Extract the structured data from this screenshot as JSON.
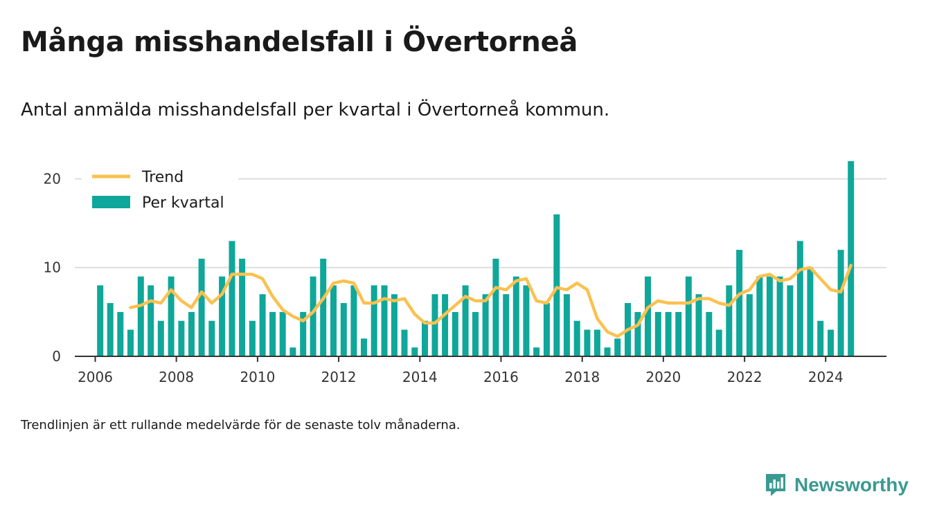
{
  "header": {
    "title": "Många misshandelsfall i Övertorneå",
    "subtitle": "Antal anmälda misshandelsfall per kvartal i Övertorneå kommun."
  },
  "footer": {
    "note": "Trendlinjen är ett rullande medelvärde för de senaste tolv månaderna.",
    "brand": "Newsworthy",
    "brand_icon": "newsworthy-logo-icon"
  },
  "colors": {
    "bars": "#0fa79a",
    "trend": "#fbc14f",
    "grid": "#dddddd",
    "axis": "#333333",
    "brand": "#3a9a92"
  },
  "chart_data": {
    "type": "bar",
    "xlim": [
      "2005-07-01",
      "2025-07-01"
    ],
    "ylim": [
      0,
      23
    ],
    "yticks": [
      0,
      10,
      20
    ],
    "xtick_labels": [
      "2006",
      "2008",
      "2010",
      "2012",
      "2014",
      "2016",
      "2018",
      "2020",
      "2022",
      "2024"
    ],
    "grid": true,
    "legend_position": "top-left",
    "legend": [
      "Trend",
      "Per kvartal"
    ],
    "categories": [
      "2006-Q1",
      "2006-Q2",
      "2006-Q3",
      "2006-Q4",
      "2007-Q1",
      "2007-Q2",
      "2007-Q3",
      "2007-Q4",
      "2008-Q1",
      "2008-Q2",
      "2008-Q3",
      "2008-Q4",
      "2009-Q1",
      "2009-Q2",
      "2009-Q3",
      "2009-Q4",
      "2010-Q1",
      "2010-Q2",
      "2010-Q3",
      "2010-Q4",
      "2011-Q1",
      "2011-Q2",
      "2011-Q3",
      "2011-Q4",
      "2012-Q1",
      "2012-Q2",
      "2012-Q3",
      "2012-Q4",
      "2013-Q1",
      "2013-Q2",
      "2013-Q3",
      "2013-Q4",
      "2014-Q1",
      "2014-Q2",
      "2014-Q3",
      "2014-Q4",
      "2015-Q1",
      "2015-Q2",
      "2015-Q3",
      "2015-Q4",
      "2016-Q1",
      "2016-Q2",
      "2016-Q3",
      "2016-Q4",
      "2017-Q1",
      "2017-Q2",
      "2017-Q3",
      "2017-Q4",
      "2018-Q1",
      "2018-Q2",
      "2018-Q3",
      "2018-Q4",
      "2019-Q1",
      "2019-Q2",
      "2019-Q3",
      "2019-Q4",
      "2020-Q1",
      "2020-Q2",
      "2020-Q3",
      "2020-Q4",
      "2021-Q1",
      "2021-Q2",
      "2021-Q3",
      "2021-Q4",
      "2022-Q1",
      "2022-Q2",
      "2022-Q3",
      "2022-Q4",
      "2023-Q1",
      "2023-Q2",
      "2023-Q3",
      "2023-Q4",
      "2024-Q1",
      "2024-Q2",
      "2024-Q3"
    ],
    "series": [
      {
        "name": "Per kvartal",
        "type": "bar",
        "values": [
          8,
          6,
          5,
          3,
          9,
          8,
          4,
          9,
          4,
          5,
          11,
          4,
          9,
          13,
          11,
          4,
          7,
          5,
          5,
          1,
          5,
          9,
          11,
          8,
          6,
          8,
          2,
          8,
          8,
          7,
          3,
          1,
          4,
          7,
          7,
          5,
          8,
          5,
          7,
          11,
          7,
          9,
          8,
          1,
          6,
          16,
          7,
          4,
          3,
          3,
          1,
          2,
          6,
          5,
          9,
          5,
          5,
          5,
          9,
          7,
          5,
          3,
          8,
          12,
          7,
          9,
          9,
          9,
          8,
          13,
          10,
          4,
          3,
          12,
          22
        ]
      },
      {
        "name": "Trend",
        "type": "line",
        "values": [
          null,
          null,
          null,
          5.5,
          5.75,
          6.25,
          6.0,
          7.5,
          6.25,
          5.5,
          7.25,
          6.0,
          7.0,
          9.25,
          9.25,
          9.25,
          8.75,
          6.75,
          5.25,
          4.5,
          4.0,
          5.0,
          6.5,
          8.25,
          8.5,
          8.25,
          6.0,
          6.0,
          6.5,
          6.25,
          6.5,
          4.75,
          3.75,
          3.75,
          4.75,
          5.75,
          6.75,
          6.25,
          6.25,
          7.75,
          7.5,
          8.5,
          8.75,
          6.25,
          6.0,
          7.75,
          7.5,
          8.25,
          7.5,
          4.25,
          2.75,
          2.25,
          3.0,
          3.5,
          5.5,
          6.25,
          6.0,
          6.0,
          6.0,
          6.5,
          6.5,
          6.0,
          5.75,
          7.0,
          7.5,
          9.0,
          9.25,
          8.5,
          8.75,
          9.75,
          10.0,
          8.75,
          7.5,
          7.25,
          10.25
        ]
      }
    ]
  }
}
